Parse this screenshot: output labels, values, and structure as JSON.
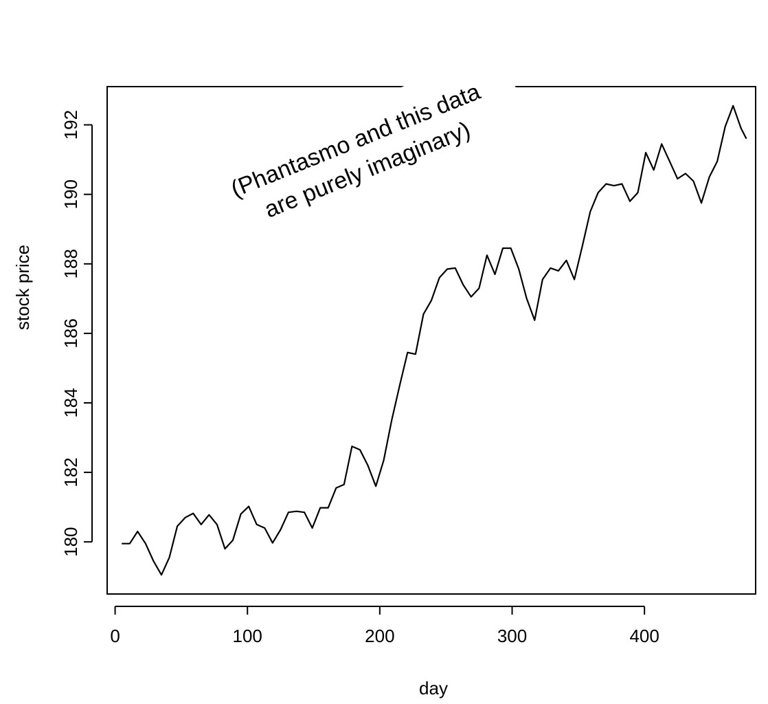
{
  "chart_data": {
    "type": "line",
    "title": "",
    "xlabel": "day",
    "ylabel": "stock price",
    "xlim": [
      -6,
      484
    ],
    "ylim": [
      178.5,
      193.1
    ],
    "x_ticks": [
      0,
      100,
      200,
      300,
      400
    ],
    "y_ticks": [
      180,
      182,
      184,
      186,
      188,
      190,
      192
    ],
    "grid": false,
    "annotation": {
      "lines": [
        "(Phantasmo and this data",
        "are purely imaginary)"
      ]
    },
    "series": [
      {
        "x": [
          5,
          11,
          17,
          23,
          29,
          35,
          41,
          47,
          53,
          59,
          65,
          71,
          77,
          83,
          89,
          95,
          101,
          107,
          113,
          119,
          125,
          131,
          137,
          143,
          149,
          155,
          161,
          167,
          173,
          179,
          185,
          191,
          197,
          203,
          209,
          215,
          221,
          227,
          233,
          239,
          245,
          251,
          257,
          263,
          269,
          275,
          281,
          287,
          293,
          299,
          305,
          311,
          317,
          323,
          329,
          335,
          341,
          347,
          353,
          359,
          365,
          371,
          377,
          383,
          389,
          395,
          401,
          407,
          413,
          419,
          425,
          431,
          437,
          443,
          449,
          455,
          461,
          467,
          473,
          477
        ],
        "values": [
          179.95,
          179.95,
          180.3,
          179.95,
          179.45,
          179.05,
          179.55,
          180.45,
          180.7,
          180.82,
          180.5,
          180.78,
          180.5,
          179.8,
          180.05,
          180.8,
          181.02,
          180.5,
          180.4,
          179.97,
          180.35,
          180.85,
          180.88,
          180.85,
          180.4,
          180.98,
          180.98,
          181.55,
          181.65,
          182.75,
          182.65,
          182.2,
          181.6,
          182.35,
          183.5,
          184.5,
          185.45,
          185.4,
          186.55,
          186.95,
          187.6,
          187.85,
          187.88,
          187.4,
          187.05,
          187.3,
          188.25,
          187.7,
          188.45,
          188.45,
          187.85,
          187.0,
          186.38,
          187.55,
          187.88,
          187.8,
          188.1,
          187.55,
          188.5,
          189.5,
          190.05,
          190.3,
          190.25,
          190.3,
          189.8,
          190.05,
          191.2,
          190.7,
          191.45,
          190.95,
          190.45,
          190.6,
          190.38,
          189.75,
          190.5,
          190.95,
          191.95,
          192.55,
          191.9,
          191.6
        ]
      }
    ]
  }
}
